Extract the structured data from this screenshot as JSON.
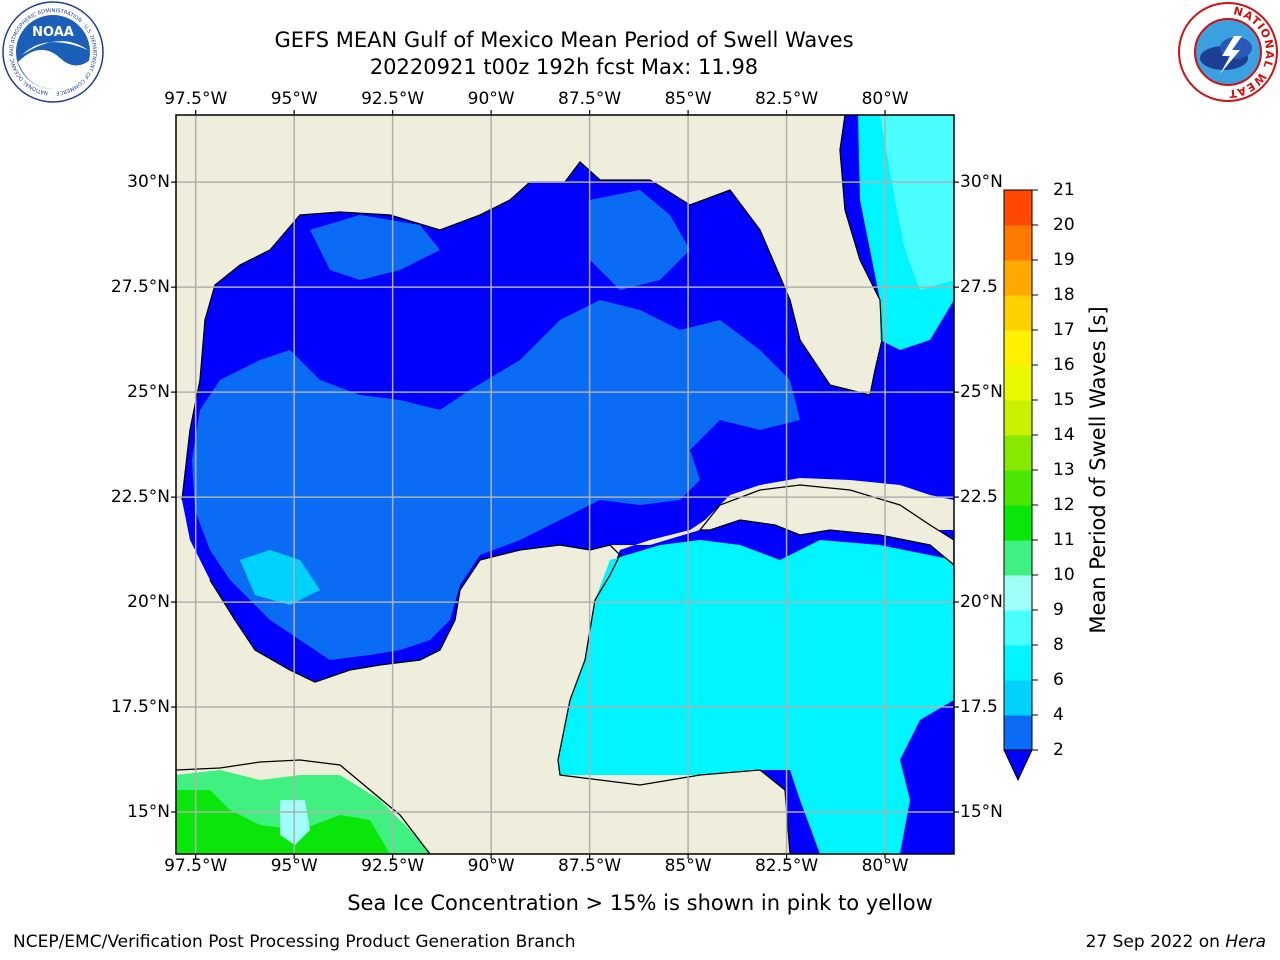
{
  "header": {
    "title": "GEFS MEAN Gulf of Mexico Mean Period of Swell Waves",
    "subtitle": "20220921 t00z 192h fcst   Max: 11.98"
  },
  "logos": {
    "left": {
      "name": "NOAA",
      "ring_text": "NATIONAL OCEANIC AND ATMOSPHERIC ADMINISTRATION · U.S. DEPARTMENT OF COMMERCE"
    },
    "right": {
      "ring_text": "NATIONAL WEATHER SERVICE"
    }
  },
  "map": {
    "lon_ticks": [
      "97.5°W",
      "95°W",
      "92.5°W",
      "90°W",
      "87.5°W",
      "85°W",
      "82.5°W",
      "80°W"
    ],
    "lat_ticks_left": [
      "30°N",
      "27.5°N",
      "25°N",
      "22.5°N",
      "20°N",
      "17.5°N",
      "15°N"
    ],
    "lat_ticks_right": [
      "30°N",
      "27.5",
      "25°N",
      "22.5",
      "20°N",
      "17.5",
      "15°N"
    ],
    "lon_values": [
      -97.5,
      -95,
      -92.5,
      -90,
      -87.5,
      -85,
      -82.5,
      -80
    ],
    "lat_values": [
      30,
      27.5,
      25,
      22.5,
      20,
      17.5,
      15
    ],
    "extent": {
      "lon_min": -98,
      "lon_max": -78.25,
      "lat_min": 14,
      "lat_max": 31.6
    },
    "colors": {
      "land": "#efeedc",
      "water_no_data": "#ffffff",
      "grid": "#b0b0b0",
      "coast": "#000000"
    }
  },
  "colorbar": {
    "title": "Mean Period of Swell Waves [s]",
    "labels": [
      "2",
      "4",
      "6",
      "8",
      "9",
      "10",
      "11",
      "12",
      "13",
      "14",
      "15",
      "16",
      "17",
      "18",
      "19",
      "20",
      "21"
    ],
    "colors": [
      "#0a6cf5",
      "#00d2ff",
      "#00f5ff",
      "#4afdff",
      "#a0fff8",
      "#40f080",
      "#0ae60a",
      "#48e600",
      "#88e800",
      "#c8f000",
      "#eaf800",
      "#fff000",
      "#ffd000",
      "#ffa800",
      "#ff7a00",
      "#ff4800",
      "#ff1000"
    ],
    "extend_color": "#0000ff"
  },
  "footer": {
    "note": "Sea Ice Concentration > 15% is shown in pink to yellow",
    "credit": "NCEP/EMC/Verification Post Processing Product Generation Branch",
    "date": "27 Sep 2022 on",
    "machine": "Hera"
  }
}
